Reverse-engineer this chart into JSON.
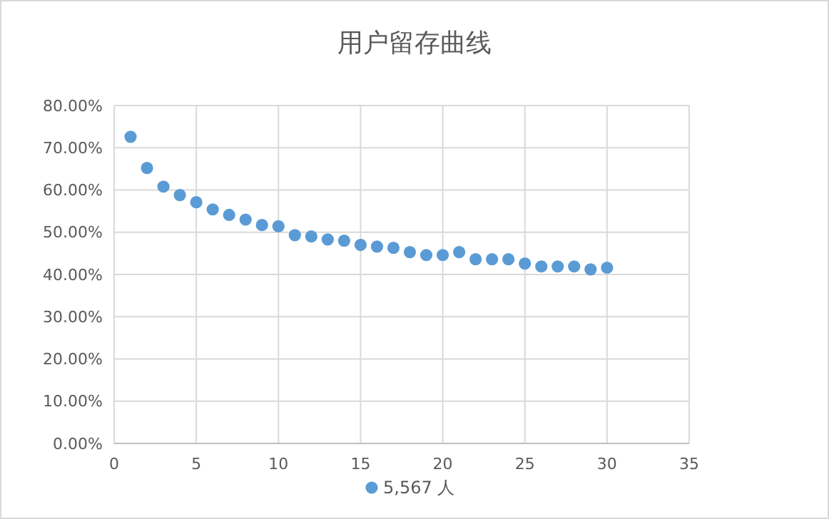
{
  "chart_data": {
    "type": "scatter",
    "title": "用户留存曲线",
    "x": [
      1,
      2,
      3,
      4,
      5,
      6,
      7,
      8,
      9,
      10,
      11,
      12,
      13,
      14,
      15,
      16,
      17,
      18,
      19,
      20,
      21,
      22,
      23,
      24,
      25,
      26,
      27,
      28,
      29,
      30
    ],
    "series": [
      {
        "name": "5,567 人",
        "color": "#5b9bd5",
        "values": [
          72.6,
          65.2,
          60.8,
          58.8,
          57.1,
          55.4,
          54.1,
          53.0,
          51.7,
          51.4,
          49.3,
          49.0,
          48.3,
          48.0,
          47.0,
          46.6,
          46.3,
          45.3,
          44.6,
          44.6,
          45.3,
          43.6,
          43.6,
          43.6,
          42.6,
          41.9,
          41.9,
          41.9,
          41.2,
          41.6
        ]
      }
    ],
    "xlim": [
      0,
      35
    ],
    "xticks": [
      0,
      5,
      10,
      15,
      20,
      25,
      30,
      35
    ],
    "ylim": [
      0,
      80
    ],
    "yticks": [
      {
        "value": 0,
        "label": "0.00%"
      },
      {
        "value": 10,
        "label": "10.00%"
      },
      {
        "value": 20,
        "label": "20.00%"
      },
      {
        "value": 30,
        "label": "30.00%"
      },
      {
        "value": 40,
        "label": "40.00%"
      },
      {
        "value": 50,
        "label": "50.00%"
      },
      {
        "value": 60,
        "label": "60.00%"
      },
      {
        "value": 70,
        "label": "70.00%"
      },
      {
        "value": 80,
        "label": "80.00%"
      }
    ],
    "grid": true,
    "legend": "bottom",
    "marker": "circle"
  }
}
